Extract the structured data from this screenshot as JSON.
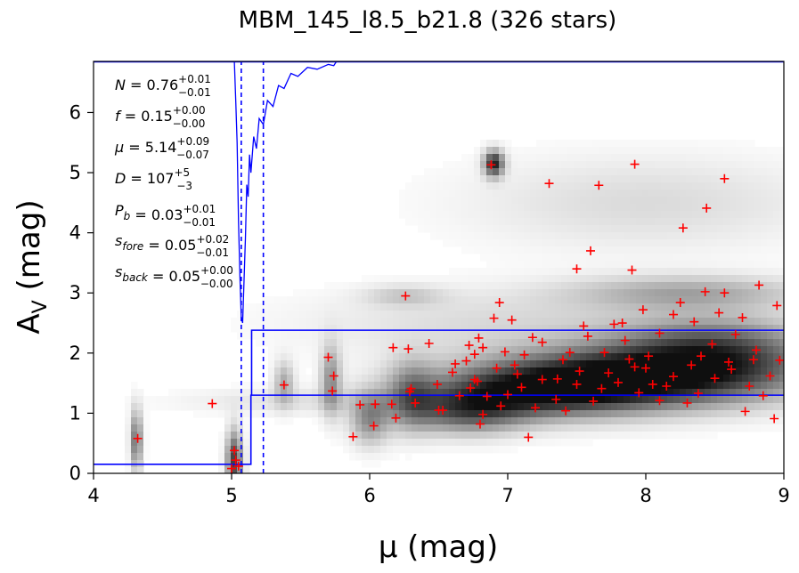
{
  "chart_data": {
    "type": "scatter",
    "title": "MBM_145_l8.5_b21.8 (326 stars)",
    "xlabel": "μ (mag)",
    "ylabel": "A_V (mag)",
    "xlim": [
      4,
      9
    ],
    "ylim": [
      0,
      6.85
    ],
    "x_ticks": [
      "4",
      "5",
      "6",
      "7",
      "8",
      "9"
    ],
    "y_ticks": [
      "0",
      "1",
      "2",
      "3",
      "4",
      "5",
      "6"
    ],
    "grid": false,
    "background": "grayscale density map of stellar extinction vs distance modulus",
    "colors": {
      "stars": "#ff0000",
      "model": "#0000ff",
      "frame": "#000000"
    },
    "annotations": [
      {
        "name": "N",
        "value": "0.76",
        "plus": "+0.01",
        "minus": "−0.01"
      },
      {
        "name": "f",
        "value": "0.15",
        "plus": "+0.00",
        "minus": "−0.00"
      },
      {
        "name": "μ",
        "value": "5.14",
        "plus": "+0.09",
        "minus": "−0.07"
      },
      {
        "name": "D",
        "value": "107",
        "plus": "+5",
        "minus": "−3"
      },
      {
        "name": "P_b",
        "value": "0.03",
        "plus": "+0.01",
        "minus": "−0.01"
      },
      {
        "name": "s_fore",
        "value": "0.05",
        "plus": "+0.02",
        "minus": "−0.01"
      },
      {
        "name": "s_back",
        "value": "0.05",
        "plus": "+0.00",
        "minus": "−0.00"
      }
    ],
    "model_lines": {
      "foreground_level": 0.15,
      "background_lower": 1.3,
      "background_upper": 2.38,
      "cloud_distance_modulus": 5.14,
      "cloud_distance_bounds": [
        5.07,
        5.23
      ]
    },
    "density_blobs": [
      {
        "x": 8.0,
        "y": 1.6,
        "sx": 0.75,
        "sy": 0.35,
        "w": 1.0
      },
      {
        "x": 7.2,
        "y": 1.35,
        "sx": 0.55,
        "sy": 0.3,
        "w": 0.75
      },
      {
        "x": 8.5,
        "y": 2.1,
        "sx": 0.5,
        "sy": 0.35,
        "w": 0.6
      },
      {
        "x": 6.7,
        "y": 1.0,
        "sx": 0.3,
        "sy": 0.25,
        "w": 0.55
      },
      {
        "x": 6.9,
        "y": 5.15,
        "sx": 0.05,
        "sy": 0.15,
        "w": 0.9
      },
      {
        "x": 4.31,
        "y": 0.55,
        "sx": 0.03,
        "sy": 0.35,
        "w": 0.6
      },
      {
        "x": 5.02,
        "y": 0.2,
        "sx": 0.04,
        "sy": 0.35,
        "w": 0.8
      },
      {
        "x": 5.38,
        "y": 1.5,
        "sx": 0.05,
        "sy": 0.25,
        "w": 0.35
      },
      {
        "x": 5.72,
        "y": 1.55,
        "sx": 0.05,
        "sy": 0.4,
        "w": 0.45
      },
      {
        "x": 6.0,
        "y": 0.9,
        "sx": 0.1,
        "sy": 0.3,
        "w": 0.45
      },
      {
        "x": 6.3,
        "y": 1.3,
        "sx": 0.12,
        "sy": 0.4,
        "w": 0.4
      },
      {
        "x": 8.3,
        "y": 3.0,
        "sx": 0.6,
        "sy": 0.2,
        "w": 0.35
      },
      {
        "x": 8.0,
        "y": 4.5,
        "sx": 0.9,
        "sy": 0.55,
        "w": 0.15
      },
      {
        "x": 5.5,
        "y": 1.2,
        "sx": 0.6,
        "sy": 0.15,
        "w": 0.12
      },
      {
        "x": 7.0,
        "y": 2.5,
        "sx": 1.0,
        "sy": 0.4,
        "w": 0.15
      },
      {
        "x": 6.25,
        "y": 2.95,
        "sx": 0.2,
        "sy": 0.12,
        "w": 0.2
      }
    ],
    "stars": [
      [
        4.32,
        0.58
      ],
      [
        4.86,
        1.16
      ],
      [
        5.02,
        0.38
      ],
      [
        5.03,
        0.22
      ],
      [
        5.05,
        0.12
      ],
      [
        5.0,
        0.08
      ],
      [
        5.38,
        1.47
      ],
      [
        5.7,
        1.93
      ],
      [
        5.73,
        1.37
      ],
      [
        5.74,
        1.62
      ],
      [
        5.88,
        0.61
      ],
      [
        5.93,
        1.14
      ],
      [
        6.03,
        0.79
      ],
      [
        6.04,
        1.15
      ],
      [
        6.16,
        1.15
      ],
      [
        6.17,
        2.09
      ],
      [
        6.19,
        0.92
      ],
      [
        6.26,
        2.95
      ],
      [
        6.28,
        2.07
      ],
      [
        6.29,
        1.36
      ],
      [
        6.3,
        1.41
      ],
      [
        6.33,
        1.17
      ],
      [
        6.43,
        2.16
      ],
      [
        6.49,
        1.48
      ],
      [
        6.5,
        1.05
      ],
      [
        6.53,
        1.05
      ],
      [
        6.6,
        1.68
      ],
      [
        6.62,
        1.82
      ],
      [
        6.65,
        1.29
      ],
      [
        6.7,
        1.87
      ],
      [
        6.72,
        2.13
      ],
      [
        6.73,
        1.42
      ],
      [
        6.76,
        1.56
      ],
      [
        6.76,
        1.98
      ],
      [
        6.78,
        1.53
      ],
      [
        6.79,
        2.25
      ],
      [
        6.8,
        0.82
      ],
      [
        6.82,
        0.98
      ],
      [
        6.82,
        2.09
      ],
      [
        6.85,
        1.28
      ],
      [
        6.88,
        5.13
      ],
      [
        6.9,
        2.58
      ],
      [
        6.94,
        2.84
      ],
      [
        6.95,
        1.12
      ],
      [
        6.98,
        2.02
      ],
      [
        7.0,
        1.31
      ],
      [
        7.03,
        2.55
      ],
      [
        7.07,
        1.65
      ],
      [
        7.1,
        1.43
      ],
      [
        7.15,
        0.6
      ],
      [
        7.18,
        2.26
      ],
      [
        7.2,
        1.09
      ],
      [
        7.25,
        1.56
      ],
      [
        7.3,
        4.82
      ],
      [
        7.35,
        1.23
      ],
      [
        7.4,
        1.89
      ],
      [
        7.45,
        2.01
      ],
      [
        7.5,
        3.4
      ],
      [
        7.5,
        1.48
      ],
      [
        7.52,
        1.7
      ],
      [
        7.55,
        2.45
      ],
      [
        7.6,
        3.7
      ],
      [
        7.62,
        1.2
      ],
      [
        7.66,
        4.79
      ],
      [
        7.7,
        2.01
      ],
      [
        7.73,
        1.67
      ],
      [
        7.77,
        2.48
      ],
      [
        7.8,
        1.51
      ],
      [
        7.85,
        2.21
      ],
      [
        7.88,
        1.9
      ],
      [
        7.9,
        3.38
      ],
      [
        7.92,
        5.14
      ],
      [
        7.95,
        1.34
      ],
      [
        7.98,
        2.72
      ],
      [
        8.0,
        1.75
      ],
      [
        8.05,
        1.48
      ],
      [
        8.1,
        2.33
      ],
      [
        8.15,
        1.45
      ],
      [
        8.2,
        1.61
      ],
      [
        8.25,
        2.84
      ],
      [
        8.27,
        4.08
      ],
      [
        8.3,
        1.17
      ],
      [
        8.35,
        2.52
      ],
      [
        8.4,
        1.95
      ],
      [
        8.43,
        3.02
      ],
      [
        8.44,
        4.41
      ],
      [
        8.5,
        1.58
      ],
      [
        8.53,
        2.67
      ],
      [
        8.57,
        3.0
      ],
      [
        8.57,
        4.9
      ],
      [
        8.6,
        1.85
      ],
      [
        8.65,
        2.31
      ],
      [
        8.7,
        2.59
      ],
      [
        8.75,
        1.45
      ],
      [
        8.8,
        2.05
      ],
      [
        8.82,
        3.13
      ],
      [
        8.85,
        1.29
      ],
      [
        8.9,
        1.62
      ],
      [
        8.93,
        0.91
      ],
      [
        8.95,
        2.79
      ],
      [
        8.97,
        1.88
      ],
      [
        8.72,
        1.03
      ],
      [
        8.1,
        1.21
      ],
      [
        7.83,
        2.5
      ],
      [
        7.42,
        1.04
      ],
      [
        7.58,
        2.28
      ],
      [
        8.38,
        1.33
      ],
      [
        8.62,
        1.73
      ],
      [
        7.25,
        2.18
      ],
      [
        7.05,
        1.8
      ],
      [
        8.2,
        2.64
      ],
      [
        8.48,
        2.15
      ],
      [
        7.68,
        1.41
      ],
      [
        7.92,
        1.77
      ],
      [
        8.02,
        1.95
      ],
      [
        7.36,
        1.57
      ],
      [
        8.78,
        1.89
      ],
      [
        7.12,
        1.97
      ],
      [
        6.92,
        1.75
      ],
      [
        8.33,
        1.8
      ]
    ],
    "model_curve": [
      [
        5.02,
        6.85
      ],
      [
        5.03,
        6.2
      ],
      [
        5.04,
        5.5
      ],
      [
        5.05,
        4.2
      ],
      [
        5.06,
        3.3
      ],
      [
        5.07,
        2.6
      ],
      [
        5.08,
        2.5
      ],
      [
        5.09,
        3.2
      ],
      [
        5.1,
        3.9
      ],
      [
        5.11,
        4.8
      ],
      [
        5.12,
        4.6
      ],
      [
        5.13,
        5.3
      ],
      [
        5.14,
        5.0
      ],
      [
        5.16,
        5.6
      ],
      [
        5.18,
        5.4
      ],
      [
        5.2,
        5.9
      ],
      [
        5.23,
        5.8
      ],
      [
        5.26,
        6.2
      ],
      [
        5.3,
        6.1
      ],
      [
        5.34,
        6.45
      ],
      [
        5.38,
        6.4
      ],
      [
        5.43,
        6.65
      ],
      [
        5.48,
        6.6
      ],
      [
        5.55,
        6.75
      ],
      [
        5.62,
        6.72
      ],
      [
        5.7,
        6.8
      ],
      [
        5.74,
        6.78
      ],
      [
        5.76,
        6.85
      ]
    ]
  }
}
